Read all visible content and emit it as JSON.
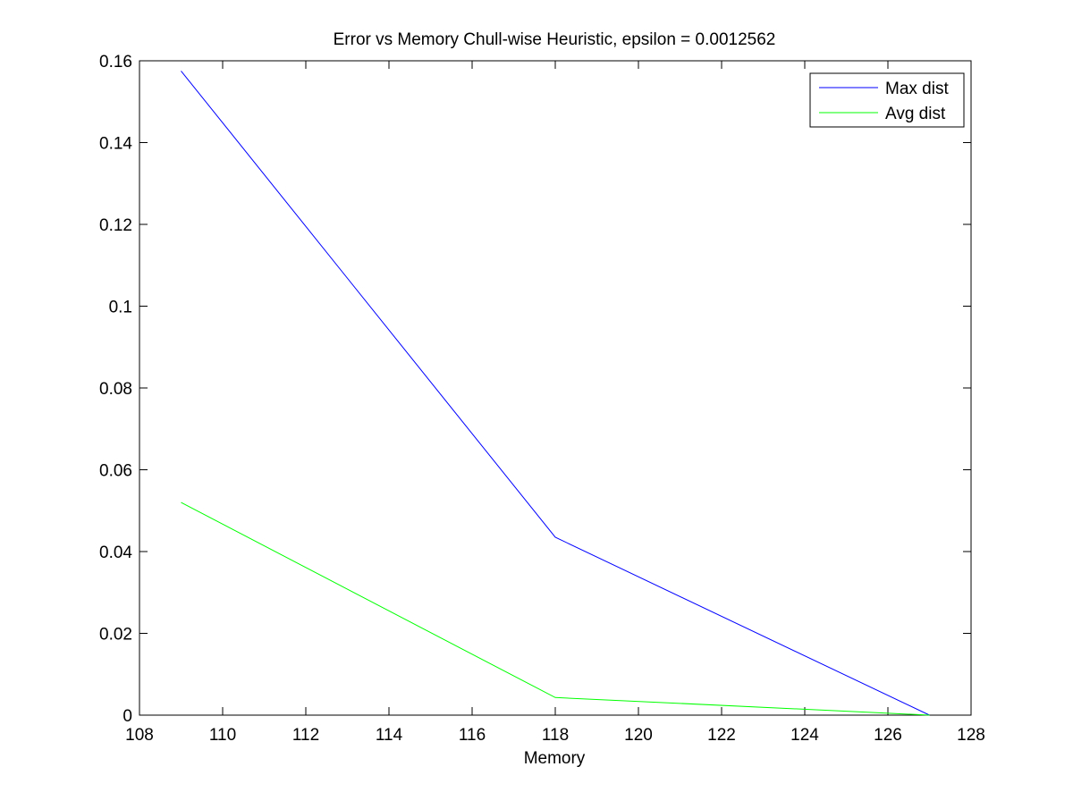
{
  "chart_data": {
    "type": "line",
    "title": "Error vs Memory Chull-wise Heuristic, epsilon = 0.0012562",
    "xlabel": "Memory",
    "ylabel": "",
    "xlim": [
      108,
      128
    ],
    "ylim": [
      0,
      0.16
    ],
    "xticks": [
      108,
      110,
      112,
      114,
      116,
      118,
      120,
      122,
      124,
      126,
      128
    ],
    "yticks": [
      0,
      0.02,
      0.04,
      0.06,
      0.08,
      0.1,
      0.12,
      0.14,
      0.16
    ],
    "xtick_labels": [
      "108",
      "110",
      "112",
      "114",
      "116",
      "118",
      "120",
      "122",
      "124",
      "126",
      "128"
    ],
    "ytick_labels": [
      "0",
      "0.02",
      "0.04",
      "0.06",
      "0.08",
      "0.1",
      "0.12",
      "0.14",
      "0.16"
    ],
    "grid": false,
    "legend_position": "top-right",
    "x": [
      109,
      118,
      127
    ],
    "series": [
      {
        "name": "Max dist",
        "color": "#0000ff",
        "values": [
          0.1575,
          0.0435,
          0.0
        ]
      },
      {
        "name": "Avg dist",
        "color": "#00ff00",
        "values": [
          0.052,
          0.0043,
          0.0
        ]
      }
    ]
  }
}
